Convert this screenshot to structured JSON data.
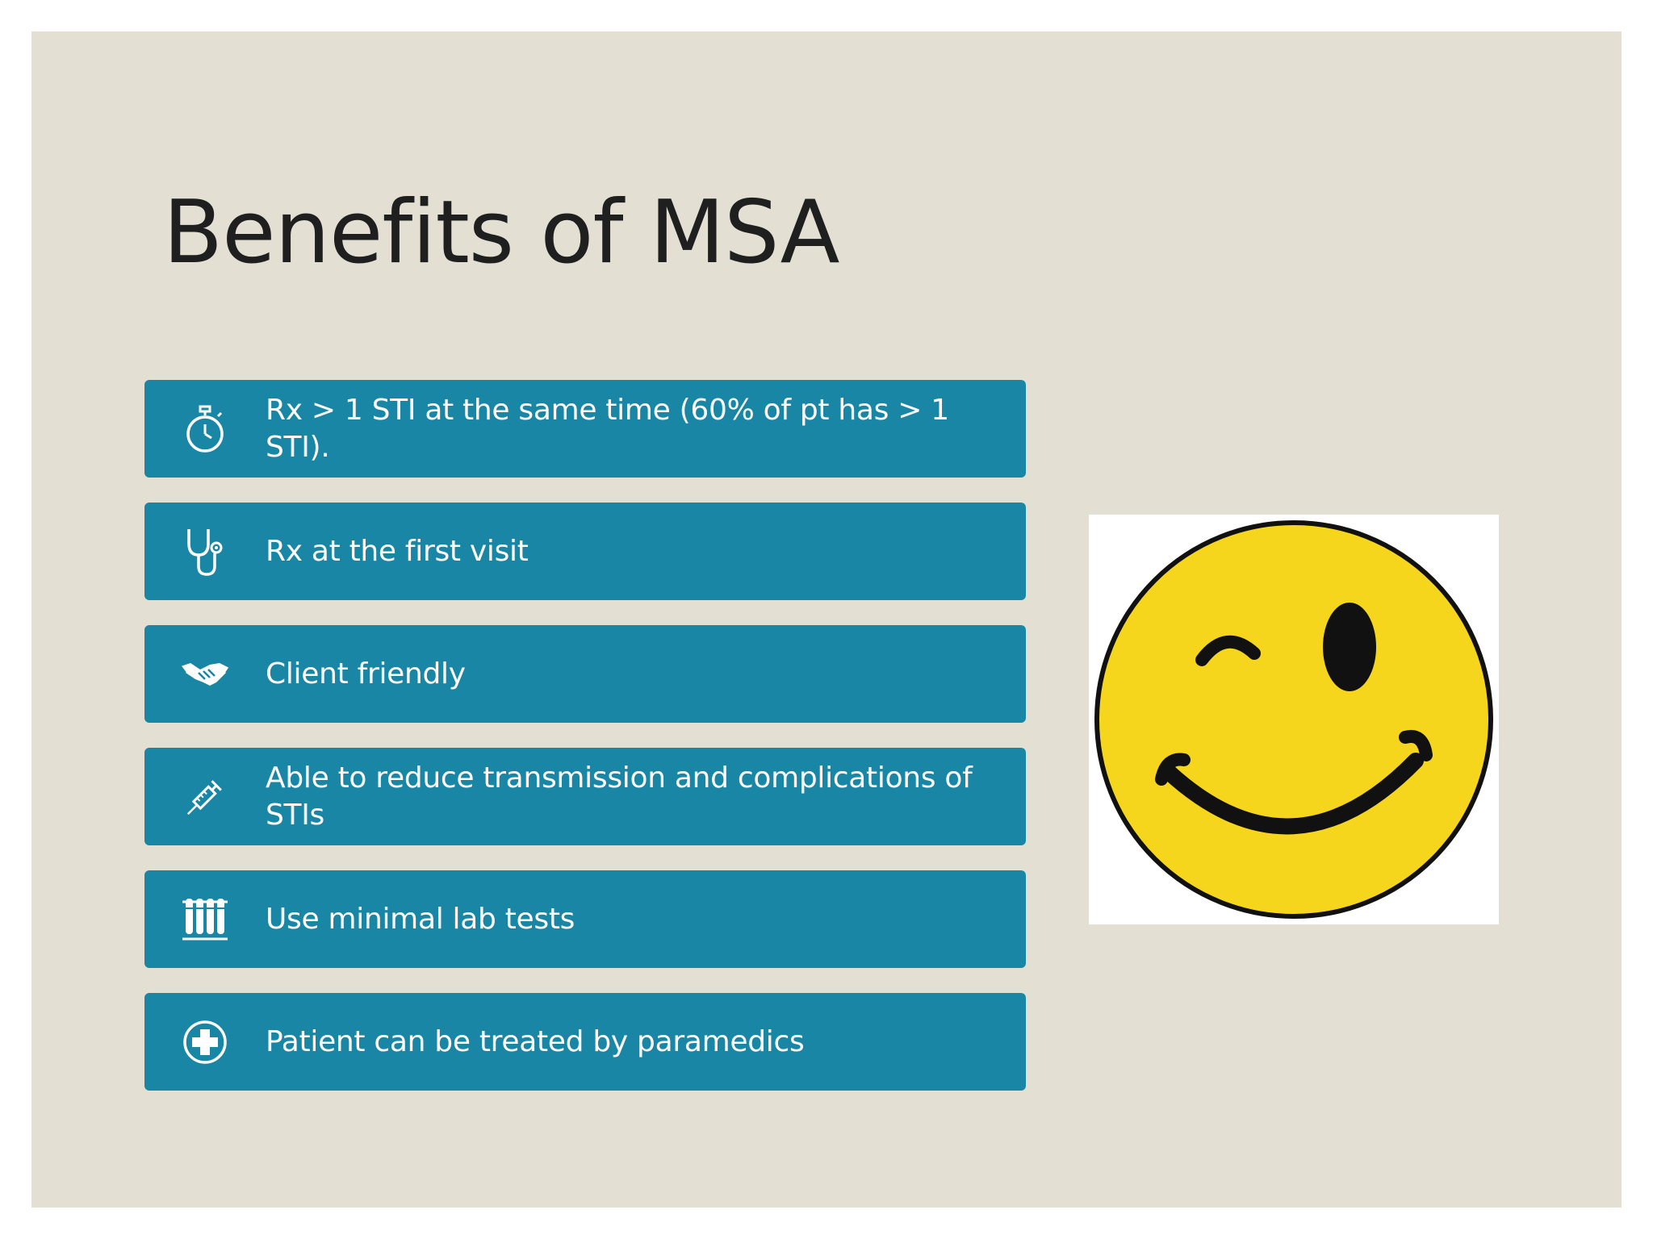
{
  "slide": {
    "title": "Benefits of MSA",
    "items": [
      {
        "icon": "stopwatch-icon",
        "text": "Rx > 1 STI at the same time (60% of pt has > 1 STI)."
      },
      {
        "icon": "stethoscope-icon",
        "text": "Rx at the first visit"
      },
      {
        "icon": "handshake-icon",
        "text": "Client friendly"
      },
      {
        "icon": "syringe-icon",
        "text": "Able to reduce transmission and complications of STIs"
      },
      {
        "icon": "test-tubes-icon",
        "text": "Use minimal lab tests"
      },
      {
        "icon": "medical-cross-icon",
        "text": "Patient can be treated by paramedics"
      }
    ],
    "image": {
      "icon": "winking-smiley-face"
    }
  },
  "colors": {
    "background": "#e3dfd2",
    "item_fill": "#1886a4",
    "item_text": "#ffffff",
    "title_text": "#1f1f1f",
    "smiley_yellow": "#f6d61c"
  }
}
